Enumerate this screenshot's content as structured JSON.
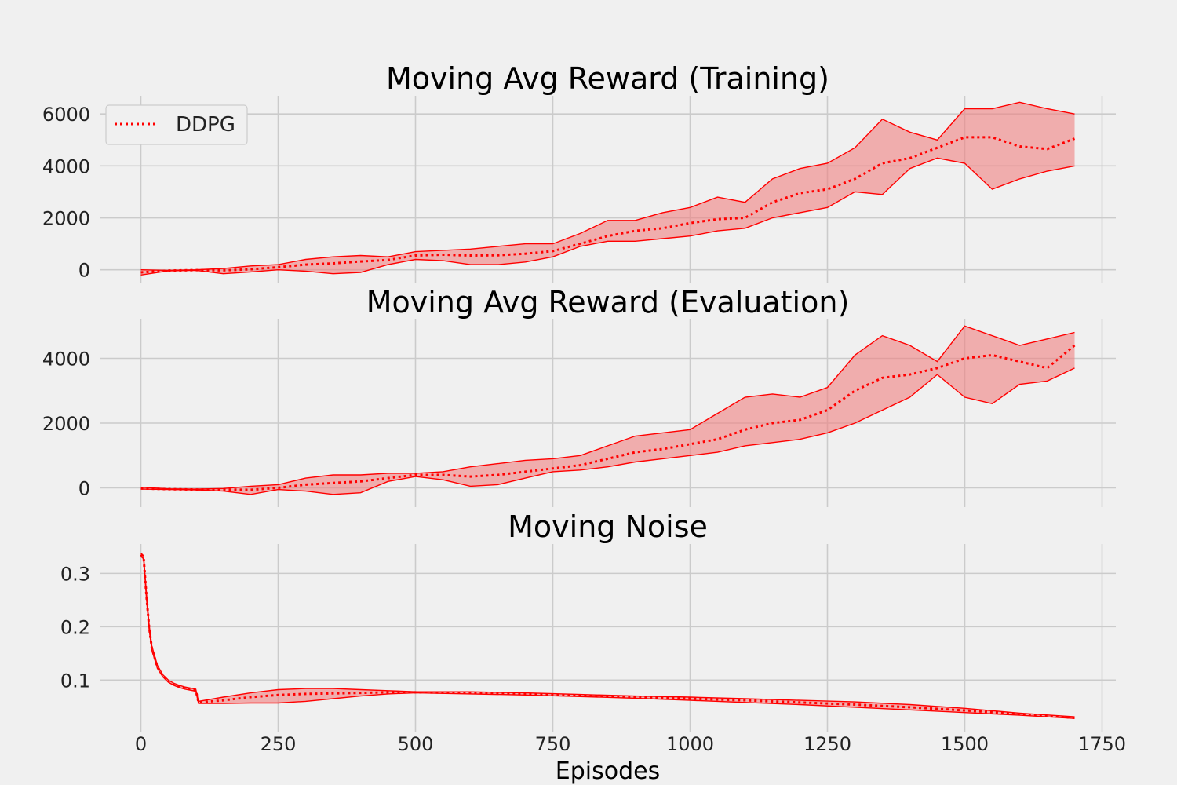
{
  "chart_data": [
    {
      "type": "line",
      "title": "Moving Avg Reward (Training)",
      "xlabel": "",
      "ylabel": "",
      "xlim": [
        -75,
        1775
      ],
      "ylim": [
        -250,
        6700
      ],
      "xticks": [
        0,
        250,
        500,
        750,
        1000,
        1250,
        1500,
        1750
      ],
      "yticks": [
        0,
        2000,
        4000,
        6000
      ],
      "grid": true,
      "legend": {
        "placement": "top-left",
        "entries": [
          "DDPG"
        ]
      },
      "colors": {
        "line": "#ff0000",
        "band": "#f08080"
      },
      "series": [
        {
          "name": "DDPG",
          "x": [
            0,
            50,
            100,
            150,
            200,
            250,
            300,
            350,
            400,
            450,
            500,
            550,
            600,
            650,
            700,
            750,
            800,
            850,
            900,
            950,
            1000,
            1050,
            1100,
            1150,
            1200,
            1250,
            1300,
            1350,
            1400,
            1450,
            1500,
            1550,
            1600,
            1650,
            1700
          ],
          "mean": [
            -100,
            -30,
            -10,
            -20,
            20,
            100,
            200,
            250,
            320,
            380,
            550,
            580,
            550,
            560,
            620,
            720,
            1000,
            1300,
            1500,
            1600,
            1800,
            1950,
            2000,
            2600,
            2950,
            3100,
            3500,
            4100,
            4300,
            4700,
            5100,
            5100,
            4750,
            4650,
            5050
          ],
          "upper": [
            0,
            -20,
            0,
            50,
            150,
            200,
            400,
            500,
            550,
            500,
            700,
            750,
            800,
            900,
            1000,
            1000,
            1400,
            1900,
            1900,
            2200,
            2400,
            2800,
            2600,
            3500,
            3900,
            4100,
            4700,
            5800,
            5300,
            5000,
            6200,
            6200,
            6450,
            6200,
            6000
          ],
          "lower": [
            -200,
            -40,
            -20,
            -150,
            -80,
            0,
            -50,
            -150,
            -100,
            200,
            400,
            350,
            200,
            200,
            300,
            500,
            900,
            1100,
            1100,
            1200,
            1300,
            1500,
            1600,
            2000,
            2200,
            2400,
            3000,
            2900,
            3900,
            4300,
            4100,
            3100,
            3500,
            3800,
            4000
          ]
        }
      ]
    },
    {
      "type": "line",
      "title": "Moving Avg Reward (Evaluation)",
      "xlabel": "",
      "ylabel": "",
      "xlim": [
        -75,
        1775
      ],
      "ylim": [
        -400,
        5200
      ],
      "xticks": [
        0,
        250,
        500,
        750,
        1000,
        1250,
        1500,
        1750
      ],
      "yticks": [
        0,
        2000,
        4000
      ],
      "grid": true,
      "colors": {
        "line": "#ff0000",
        "band": "#f08080"
      },
      "series": [
        {
          "x": [
            0,
            50,
            100,
            150,
            200,
            250,
            300,
            350,
            400,
            450,
            500,
            550,
            600,
            650,
            700,
            750,
            800,
            850,
            900,
            950,
            1000,
            1050,
            1100,
            1150,
            1200,
            1250,
            1300,
            1350,
            1400,
            1450,
            1500,
            1550,
            1600,
            1650,
            1700
          ],
          "mean": [
            -20,
            -40,
            -50,
            -50,
            -60,
            0,
            100,
            150,
            200,
            300,
            400,
            400,
            350,
            400,
            500,
            600,
            700,
            900,
            1100,
            1200,
            1350,
            1500,
            1800,
            2000,
            2100,
            2400,
            3000,
            3400,
            3500,
            3700,
            4000,
            4100,
            3900,
            3700,
            4400
          ],
          "upper": [
            20,
            -30,
            -40,
            -20,
            50,
            100,
            300,
            400,
            400,
            450,
            450,
            500,
            650,
            750,
            850,
            900,
            1000,
            1300,
            1600,
            1700,
            1800,
            2300,
            2800,
            2900,
            2800,
            3100,
            4100,
            4700,
            4400,
            3900,
            5000,
            4700,
            4400,
            4600,
            4800
          ],
          "lower": [
            -40,
            -50,
            -60,
            -100,
            -200,
            -50,
            -100,
            -200,
            -150,
            200,
            350,
            250,
            50,
            100,
            300,
            500,
            550,
            650,
            800,
            900,
            1000,
            1100,
            1300,
            1400,
            1500,
            1700,
            2000,
            2400,
            2800,
            3500,
            2800,
            2600,
            3200,
            3300,
            3700
          ]
        }
      ]
    },
    {
      "type": "line",
      "title": "Moving Noise",
      "xlabel": "Episodes",
      "ylabel": "",
      "xlim": [
        -75,
        1775
      ],
      "ylim": [
        0.015,
        0.355
      ],
      "xticks": [
        0,
        250,
        500,
        750,
        1000,
        1250,
        1500,
        1750
      ],
      "yticks": [
        0.1,
        0.2,
        0.3
      ],
      "grid": true,
      "colors": {
        "line": "#ff0000",
        "band": "#f08080"
      },
      "series": [
        {
          "x": [
            0,
            5,
            10,
            15,
            20,
            30,
            40,
            50,
            60,
            70,
            80,
            90,
            100,
            105,
            150,
            200,
            250,
            300,
            350,
            400,
            450,
            500,
            600,
            700,
            800,
            900,
            1000,
            1100,
            1200,
            1300,
            1400,
            1500,
            1600,
            1700
          ],
          "mean": [
            0.335,
            0.33,
            0.26,
            0.2,
            0.16,
            0.125,
            0.108,
            0.098,
            0.092,
            0.088,
            0.085,
            0.083,
            0.081,
            0.058,
            0.062,
            0.068,
            0.072,
            0.074,
            0.075,
            0.076,
            0.077,
            0.077,
            0.076,
            0.074,
            0.071,
            0.068,
            0.065,
            0.062,
            0.058,
            0.054,
            0.049,
            0.043,
            0.036,
            0.029
          ],
          "upper": [
            0.338,
            0.333,
            0.265,
            0.205,
            0.164,
            0.128,
            0.11,
            0.1,
            0.094,
            0.09,
            0.087,
            0.085,
            0.083,
            0.06,
            0.068,
            0.076,
            0.082,
            0.084,
            0.084,
            0.082,
            0.08,
            0.078,
            0.078,
            0.076,
            0.073,
            0.07,
            0.068,
            0.065,
            0.062,
            0.059,
            0.054,
            0.047,
            0.038,
            0.031
          ],
          "lower": [
            0.332,
            0.327,
            0.255,
            0.195,
            0.156,
            0.122,
            0.106,
            0.096,
            0.09,
            0.086,
            0.083,
            0.081,
            0.079,
            0.056,
            0.056,
            0.057,
            0.057,
            0.06,
            0.065,
            0.07,
            0.074,
            0.076,
            0.074,
            0.072,
            0.069,
            0.066,
            0.062,
            0.058,
            0.054,
            0.049,
            0.044,
            0.039,
            0.034,
            0.028
          ]
        }
      ]
    }
  ]
}
